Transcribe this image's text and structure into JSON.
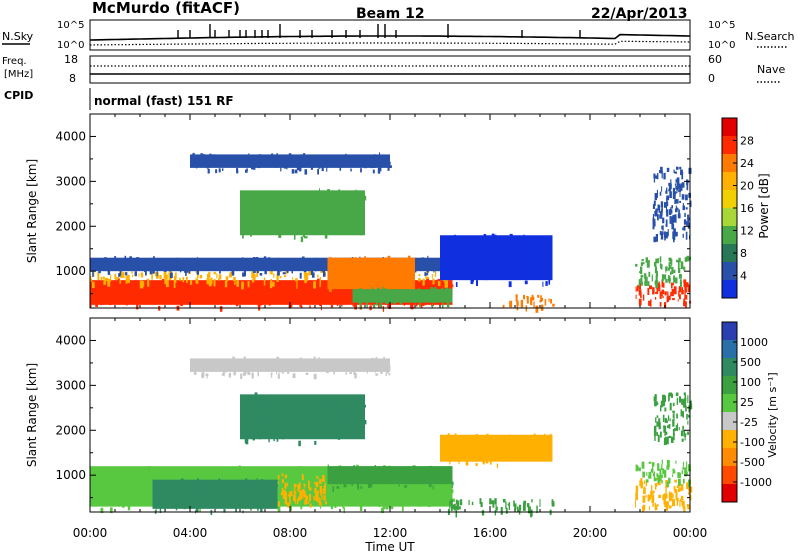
{
  "header": {
    "station": "McMurdo (fitACF)",
    "beam": "Beam 12",
    "date": "22/Apr/2013"
  },
  "noise_panel": {
    "left_label": "N.Sky",
    "right_label": "N.Search",
    "y_ticks_left": [
      "10^5",
      "10^0"
    ],
    "y_ticks_right": [
      "10^5",
      "10^0"
    ]
  },
  "freq_panel": {
    "left_label_line1": "Freq.",
    "left_label_line2": "[MHz]",
    "right_label": "Nave",
    "y_ticks_left": [
      "18",
      "8"
    ],
    "y_ticks_right": [
      "60",
      "0"
    ]
  },
  "cpid_panel": {
    "left_label": "CPID",
    "mode": "normal (fast) 151 RF"
  },
  "chart_data": [
    {
      "type": "heatmap",
      "panel": "power",
      "xlabel": "",
      "ylabel": "Slant Range [km]",
      "xlim_hours": [
        0,
        24
      ],
      "ylim": [
        180,
        4500
      ],
      "x_ticks": [
        "00:00",
        "04:00",
        "08:00",
        "12:00",
        "16:00",
        "20:00",
        "00:00"
      ],
      "y_ticks": [
        1000,
        2000,
        3000,
        4000
      ],
      "colorbar": {
        "label": "Power [dB]",
        "ticks": [
          "28",
          "24",
          "20",
          "16",
          "12",
          "8",
          "4"
        ],
        "colors_top_to_bottom": [
          "#e00000",
          "#ff2a00",
          "#ff7a00",
          "#ffb000",
          "#f0d000",
          "#a8d838",
          "#48a848",
          "#287858",
          "#2850a8",
          "#1030e0"
        ]
      },
      "regions": [
        {
          "t0": 0.0,
          "t1": 14.5,
          "r0": 250,
          "r1": 800,
          "value": 28
        },
        {
          "t0": 0.0,
          "t1": 14.5,
          "r0": 800,
          "r1": 1000,
          "value": 20
        },
        {
          "t0": 0.0,
          "t1": 14.5,
          "r0": 1000,
          "r1": 1300,
          "value": 8
        },
        {
          "t0": 9.5,
          "t1": 13.0,
          "r0": 600,
          "r1": 1300,
          "value": 24
        },
        {
          "t0": 14.0,
          "t1": 18.5,
          "r0": 800,
          "r1": 1800,
          "value": 4
        },
        {
          "t0": 16.5,
          "t1": 18.5,
          "r0": 250,
          "r1": 450,
          "value": 24
        },
        {
          "t0": 10.5,
          "t1": 14.5,
          "r0": 300,
          "r1": 600,
          "value": 12
        },
        {
          "t0": 21.8,
          "t1": 24.0,
          "r0": 350,
          "r1": 800,
          "value": 28
        },
        {
          "t0": 21.8,
          "t1": 24.0,
          "r0": 800,
          "r1": 1300,
          "value": 12
        },
        {
          "t0": 22.5,
          "t1": 24.0,
          "r0": 1800,
          "r1": 3300,
          "value": 6
        },
        {
          "t0": 6.0,
          "t1": 11.0,
          "r0": 1800,
          "r1": 2800,
          "value": 12
        },
        {
          "t0": 4.0,
          "t1": 12.0,
          "r0": 3300,
          "r1": 3600,
          "value": 8
        }
      ]
    },
    {
      "type": "heatmap",
      "panel": "velocity",
      "xlabel": "Time UT",
      "ylabel": "Slant Range [km]",
      "xlim_hours": [
        0,
        24
      ],
      "ylim": [
        180,
        4500
      ],
      "x_ticks": [
        "00:00",
        "04:00",
        "08:00",
        "12:00",
        "16:00",
        "20:00",
        "00:00"
      ],
      "y_ticks": [
        1000,
        2000,
        3000,
        4000
      ],
      "colorbar": {
        "label": "Velocity [m s⁻¹]",
        "ticks": [
          "1000",
          "500",
          "100",
          "25",
          "-25",
          "-100",
          "-500",
          "-1000"
        ],
        "colors_top_to_bottom": [
          "#2a3fb0",
          "#2a70a8",
          "#2f8a62",
          "#3aa040",
          "#58c840",
          "#c8c8c8",
          "#ffb000",
          "#ff8c00",
          "#ff4a00",
          "#e00000"
        ]
      },
      "regions": [
        {
          "t0": 0.0,
          "t1": 14.5,
          "r0": 300,
          "r1": 1200,
          "value": 0
        },
        {
          "t0": 2.5,
          "t1": 7.5,
          "r0": 250,
          "r1": 900,
          "value": 300
        },
        {
          "t0": 7.5,
          "t1": 9.5,
          "r0": 400,
          "r1": 1000,
          "value": -150
        },
        {
          "t0": 9.5,
          "t1": 14.5,
          "r0": 800,
          "r1": 1200,
          "value": 60
        },
        {
          "t0": 14.0,
          "t1": 18.5,
          "r0": 1300,
          "r1": 1900,
          "value": -150
        },
        {
          "t0": 14.0,
          "t1": 18.5,
          "r0": 250,
          "r1": 450,
          "value": 80
        },
        {
          "t0": 21.8,
          "t1": 24.0,
          "r0": 350,
          "r1": 900,
          "value": -300
        },
        {
          "t0": 21.8,
          "t1": 24.0,
          "r0": 900,
          "r1": 1300,
          "value": 0
        },
        {
          "t0": 22.5,
          "t1": 24.0,
          "r0": 1800,
          "r1": 2800,
          "value": 60
        },
        {
          "t0": 6.0,
          "t1": 11.0,
          "r0": 1800,
          "r1": 2800,
          "value": 200
        },
        {
          "t0": 4.0,
          "t1": 12.0,
          "r0": 3300,
          "r1": 3600,
          "value": -50
        }
      ]
    }
  ]
}
